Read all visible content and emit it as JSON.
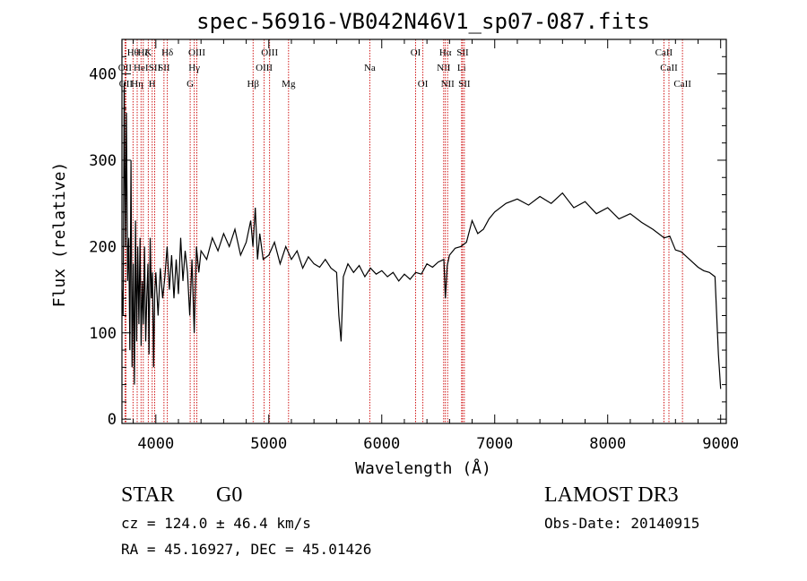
{
  "chart_data": {
    "type": "line",
    "title": "spec-56916-VB042N46V1_sp07-087.fits",
    "xlabel": "Wavelength (Å)",
    "ylabel": "Flux (relative)",
    "xlim": [
      3700,
      9050
    ],
    "ylim": [
      -5,
      440
    ],
    "xticks": [
      4000,
      5000,
      6000,
      7000,
      8000,
      9000
    ],
    "yticks": [
      0,
      100,
      200,
      300,
      400
    ],
    "grid": false,
    "spectrum": {
      "x": [
        3700,
        3710,
        3720,
        3730,
        3740,
        3750,
        3760,
        3770,
        3780,
        3790,
        3800,
        3810,
        3820,
        3830,
        3840,
        3850,
        3860,
        3870,
        3880,
        3890,
        3900,
        3910,
        3920,
        3930,
        3940,
        3950,
        3960,
        3970,
        3980,
        3990,
        4000,
        4020,
        4040,
        4060,
        4080,
        4100,
        4120,
        4140,
        4160,
        4180,
        4200,
        4220,
        4240,
        4260,
        4280,
        4300,
        4320,
        4340,
        4360,
        4380,
        4400,
        4450,
        4500,
        4550,
        4600,
        4650,
        4700,
        4750,
        4800,
        4840,
        4860,
        4880,
        4900,
        4920,
        4950,
        5000,
        5050,
        5100,
        5150,
        5200,
        5250,
        5300,
        5350,
        5400,
        5450,
        5500,
        5550,
        5600,
        5620,
        5640,
        5660,
        5700,
        5750,
        5800,
        5850,
        5900,
        5950,
        6000,
        6050,
        6100,
        6150,
        6200,
        6250,
        6300,
        6350,
        6400,
        6450,
        6500,
        6550,
        6563,
        6580,
        6600,
        6650,
        6700,
        6750,
        6800,
        6850,
        6900,
        6950,
        7000,
        7100,
        7200,
        7300,
        7400,
        7500,
        7600,
        7700,
        7800,
        7900,
        8000,
        8100,
        8200,
        8300,
        8400,
        8500,
        8550,
        8600,
        8650,
        8700,
        8750,
        8800,
        8850,
        8900,
        8950,
        8980,
        9000
      ],
      "y": [
        150,
        120,
        390,
        200,
        355,
        160,
        210,
        80,
        300,
        60,
        180,
        40,
        230,
        90,
        200,
        110,
        210,
        85,
        160,
        110,
        200,
        90,
        140,
        180,
        75,
        210,
        140,
        170,
        60,
        145,
        170,
        120,
        175,
        140,
        165,
        200,
        150,
        190,
        140,
        185,
        145,
        210,
        160,
        195,
        170,
        120,
        185,
        100,
        200,
        170,
        195,
        185,
        210,
        195,
        215,
        200,
        220,
        190,
        205,
        230,
        200,
        245,
        185,
        215,
        185,
        190,
        205,
        180,
        200,
        185,
        195,
        175,
        188,
        180,
        176,
        185,
        175,
        170,
        120,
        90,
        165,
        180,
        170,
        178,
        165,
        175,
        168,
        172,
        165,
        170,
        160,
        168,
        162,
        170,
        168,
        180,
        176,
        182,
        185,
        140,
        178,
        190,
        198,
        200,
        205,
        230,
        215,
        220,
        232,
        240,
        250,
        255,
        248,
        258,
        250,
        262,
        245,
        252,
        238,
        245,
        232,
        238,
        228,
        220,
        210,
        212,
        196,
        194,
        188,
        182,
        176,
        172,
        170,
        165,
        75,
        35
      ]
    },
    "line_markers": [
      {
        "wavelength": 3727,
        "label": "OII",
        "row": 2
      },
      {
        "wavelength": 3735,
        "label": "OII",
        "row": 3
      },
      {
        "wavelength": 3798,
        "label": "Hθ",
        "row": 1
      },
      {
        "wavelength": 3835,
        "label": "Hη",
        "row": 3
      },
      {
        "wavelength": 3869,
        "label": "HeI",
        "row": 2
      },
      {
        "wavelength": 3889,
        "label": "Hζ",
        "row": 1
      },
      {
        "wavelength": 3933,
        "label": "K",
        "row": 1
      },
      {
        "wavelength": 3968,
        "label": "H",
        "row": 3
      },
      {
        "wavelength": 3990,
        "label": "SII",
        "row": 2
      },
      {
        "wavelength": 4072,
        "label": "SII",
        "row": 2
      },
      {
        "wavelength": 4102,
        "label": "Hδ",
        "row": 1
      },
      {
        "wavelength": 4304,
        "label": "G",
        "row": 3
      },
      {
        "wavelength": 4340,
        "label": "Hγ",
        "row": 2
      },
      {
        "wavelength": 4363,
        "label": "OIII",
        "row": 1
      },
      {
        "wavelength": 4861,
        "label": "Hβ",
        "row": 3
      },
      {
        "wavelength": 4959,
        "label": "OIII",
        "row": 2
      },
      {
        "wavelength": 5007,
        "label": "OIII",
        "row": 1
      },
      {
        "wavelength": 5175,
        "label": "Mg",
        "row": 3
      },
      {
        "wavelength": 5894,
        "label": "Na",
        "row": 2
      },
      {
        "wavelength": 6300,
        "label": "OI",
        "row": 1
      },
      {
        "wavelength": 6364,
        "label": "OI",
        "row": 3
      },
      {
        "wavelength": 6548,
        "label": "NII",
        "row": 2
      },
      {
        "wavelength": 6563,
        "label": "Hα",
        "row": 1
      },
      {
        "wavelength": 6583,
        "label": "NII",
        "row": 3
      },
      {
        "wavelength": 6707,
        "label": "Li",
        "row": 2
      },
      {
        "wavelength": 6716,
        "label": "SII",
        "row": 1
      },
      {
        "wavelength": 6731,
        "label": "SII",
        "row": 3
      },
      {
        "wavelength": 8498,
        "label": "CaII",
        "row": 1
      },
      {
        "wavelength": 8542,
        "label": "CaII",
        "row": 2
      },
      {
        "wavelength": 8662,
        "label": "CaII",
        "row": 3
      }
    ]
  },
  "info": {
    "class": "STAR",
    "subclass": "G0",
    "survey": "LAMOST DR3",
    "redshift": "cz =  124.0 ± 46.4 km/s",
    "obs_date": "Obs-Date: 20140915",
    "coords": "RA =  45.16927, DEC =  45.01426"
  },
  "colors": {
    "spectrum": "#000000",
    "marker_line": "#cc0000",
    "axes": "#000000"
  }
}
